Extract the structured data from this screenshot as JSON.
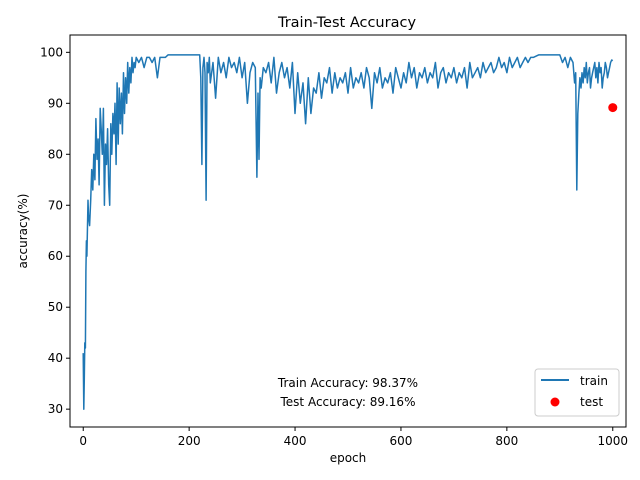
{
  "chart_data": {
    "type": "line",
    "title": "Train-Test Accuracy",
    "xlabel": "epoch",
    "ylabel": "accuracy(%)",
    "xlim": [
      -25,
      1025
    ],
    "ylim": [
      26.5,
      103.4
    ],
    "xticks": [
      0,
      200,
      400,
      600,
      800,
      1000
    ],
    "yticks": [
      30,
      40,
      50,
      60,
      70,
      80,
      90,
      100
    ],
    "grid": false,
    "legend_position": "bottom-right",
    "series": [
      {
        "name": "train",
        "kind": "line",
        "color": "#1f77b4",
        "x": [
          0,
          1,
          2,
          3,
          4,
          5,
          6,
          7,
          8,
          9,
          10,
          12,
          14,
          16,
          18,
          20,
          22,
          24,
          26,
          28,
          30,
          32,
          34,
          36,
          38,
          40,
          42,
          44,
          46,
          48,
          50,
          52,
          54,
          56,
          58,
          60,
          62,
          64,
          66,
          68,
          70,
          72,
          74,
          76,
          78,
          80,
          82,
          84,
          86,
          88,
          90,
          92,
          94,
          96,
          98,
          100,
          105,
          110,
          115,
          120,
          125,
          130,
          135,
          140,
          145,
          150,
          155,
          160,
          170,
          180,
          190,
          200,
          210,
          220,
          222,
          224,
          226,
          228,
          230,
          232,
          234,
          236,
          238,
          240,
          245,
          250,
          255,
          260,
          265,
          270,
          275,
          280,
          285,
          290,
          295,
          300,
          305,
          310,
          315,
          320,
          325,
          328,
          330,
          332,
          334,
          336,
          340,
          345,
          350,
          355,
          360,
          365,
          370,
          375,
          380,
          385,
          390,
          395,
          400,
          405,
          410,
          415,
          420,
          425,
          430,
          435,
          440,
          445,
          450,
          455,
          460,
          465,
          470,
          475,
          480,
          485,
          490,
          495,
          500,
          505,
          510,
          515,
          520,
          525,
          530,
          535,
          540,
          545,
          550,
          555,
          560,
          565,
          570,
          575,
          580,
          585,
          590,
          595,
          600,
          605,
          610,
          615,
          620,
          625,
          630,
          635,
          640,
          645,
          650,
          655,
          660,
          665,
          670,
          675,
          680,
          685,
          690,
          695,
          700,
          705,
          710,
          715,
          720,
          725,
          730,
          735,
          740,
          745,
          750,
          755,
          760,
          765,
          770,
          775,
          780,
          785,
          790,
          795,
          800,
          805,
          810,
          815,
          820,
          825,
          830,
          835,
          840,
          845,
          850,
          860,
          870,
          880,
          890,
          900,
          905,
          910,
          915,
          920,
          925,
          928,
          930,
          932,
          934,
          936,
          938,
          940,
          942,
          944,
          946,
          948,
          950,
          952,
          954,
          956,
          958,
          960,
          962,
          964,
          966,
          968,
          970,
          972,
          974,
          976,
          978,
          980,
          982,
          984,
          986,
          988,
          990,
          992,
          994,
          996,
          998,
          1000
        ],
        "y": [
          41,
          30,
          36,
          43,
          42,
          57,
          63,
          60,
          66,
          71,
          68,
          66,
          71,
          77,
          73,
          80,
          75,
          87,
          79,
          83,
          74,
          89,
          85,
          80,
          89,
          70,
          82,
          78,
          85,
          74,
          70,
          86,
          80,
          88,
          84,
          90,
          78,
          94,
          82,
          93,
          86,
          92,
          84,
          96,
          88,
          95,
          90,
          98,
          92,
          97,
          94,
          99,
          96,
          98,
          97,
          99,
          98,
          99,
          97,
          99,
          99,
          98,
          99,
          95,
          99,
          99,
          99,
          99.5,
          99.5,
          99.5,
          99.5,
          99.5,
          99.5,
          99.5,
          95,
          78,
          97,
          99,
          96,
          71,
          98,
          96,
          99,
          94,
          98,
          91,
          99,
          96,
          98,
          95,
          99,
          97,
          98,
          96,
          99,
          95,
          98,
          90,
          96,
          98,
          97,
          75.5,
          92,
          79,
          95,
          93,
          97,
          96,
          98,
          94,
          99,
          92,
          96,
          98,
          95,
          97,
          93,
          98,
          88,
          96,
          90,
          94,
          86,
          95,
          88,
          93,
          92,
          96,
          91,
          95,
          94,
          97,
          92,
          96,
          93,
          95,
          94,
          96,
          92,
          97,
          93,
          95,
          94,
          96,
          93,
          97,
          95,
          89,
          96,
          94,
          97,
          93,
          95,
          94,
          96,
          92,
          97,
          95,
          93,
          96,
          94,
          98,
          95,
          97,
          93,
          96,
          95,
          97,
          94,
          96,
          95,
          98,
          93,
          96,
          97,
          94,
          96,
          95,
          97,
          94,
          96,
          95,
          97,
          93,
          98,
          95,
          96,
          97,
          95,
          98,
          96,
          97,
          98,
          96,
          97,
          99,
          97,
          98,
          96,
          99,
          97,
          98,
          99,
          97,
          98,
          99,
          98,
          99,
          99,
          99.5,
          99.5,
          99.5,
          99.5,
          99.5,
          98,
          99,
          97,
          99,
          98,
          94,
          96,
          73,
          88,
          92,
          95,
          93,
          96,
          94,
          97,
          95,
          98,
          94,
          96,
          97,
          93,
          95,
          96,
          97,
          98,
          95,
          97,
          94,
          98,
          96,
          97,
          93,
          95,
          96,
          98,
          97,
          95,
          96,
          97,
          98,
          98.5,
          98.37
        ]
      },
      {
        "name": "test",
        "kind": "scatter",
        "color": "#ff0000",
        "x": [
          1000
        ],
        "y": [
          89.16
        ]
      }
    ],
    "annotations": [
      "Train Accuracy: 98.37%",
      "Test Accuracy: 89.16%"
    ]
  }
}
